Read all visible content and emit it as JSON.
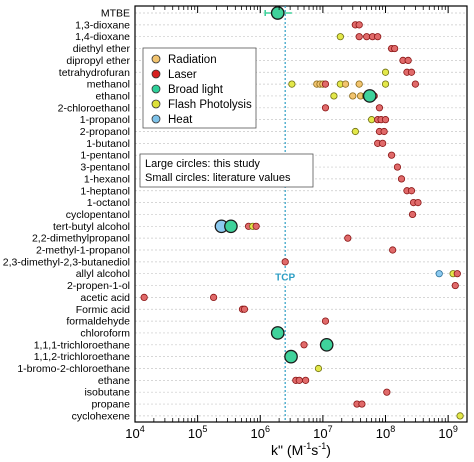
{
  "chart_data": {
    "type": "scatter",
    "xlabel_main": "k\"",
    "xlabel_unit_open": " (M",
    "xlabel_unit_exp1": "-1",
    "xlabel_unit_mid": "s",
    "xlabel_unit_exp2": "-1",
    "xlabel_unit_close": ")",
    "x_scale": "log",
    "xlim": [
      10000,
      2000000000
    ],
    "x_ticks": [
      {
        "value": 10000,
        "base": "10",
        "exp": "4"
      },
      {
        "value": 100000,
        "base": "10",
        "exp": "5"
      },
      {
        "value": 1000000,
        "base": "10",
        "exp": "6"
      },
      {
        "value": 10000000,
        "base": "10",
        "exp": "7"
      },
      {
        "value": 100000000,
        "base": "10",
        "exp": "8"
      },
      {
        "value": 1000000000,
        "base": "10",
        "exp": "9"
      }
    ],
    "categories": [
      "MTBE",
      "1,3-dioxane",
      "1,4-dioxane",
      "diethyl ether",
      "dipropyl ether",
      "tetrahydrofuran",
      "methanol",
      "ethanol",
      "2-chloroethanol",
      "1-propanol",
      "2-propanol",
      "1-butanol",
      "1-pentanol",
      "3-pentanol",
      "1-hexanol",
      "1-heptanol",
      "1-octanol",
      "cyclopentanol",
      "tert-butyl alcohol",
      "2,2-dimethylpropanol",
      "2-methyl-1-propanol",
      "2,3-dimethyl-2,3-butanediol",
      "allyl alcohol",
      "2-propen-1-ol",
      "acetic acid",
      "Formic acid",
      "formaldehyde",
      "chloroform",
      "1,1,1-trichloroethane",
      "1,1,2-trichloroethane",
      "1-bromo-2-chloroethane",
      "ethane",
      "isobutane",
      "propane",
      "cyclohexene"
    ],
    "tcp": {
      "label": "TCP",
      "value": 2500000
    },
    "legend": {
      "placement": "upper-left",
      "entries": [
        {
          "name": "Radiation",
          "color": "#f2c46f"
        },
        {
          "name": "Laser",
          "color": "#d62020"
        },
        {
          "name": "Broad light",
          "color": "#2fd09a"
        },
        {
          "name": "Flash Photolysis",
          "color": "#dde038"
        },
        {
          "name": "Heat",
          "color": "#7ec3ea"
        }
      ]
    },
    "annotation": {
      "line1": "Large circles:  this study",
      "line2": "Small circles:  literature values"
    },
    "colors": {
      "Radiation": "#f2c46f",
      "Laser": "#e06a6a",
      "Broad light": "#3fd29b",
      "Flash Photolysis": "#e3e84a",
      "Heat": "#8ccaf0"
    },
    "large_points": [
      {
        "category": "MTBE",
        "x": 1900000,
        "method": "Broad light",
        "error": [
          1200000,
          3200000
        ]
      },
      {
        "category": "ethanol",
        "x": 56000000,
        "method": "Broad light"
      },
      {
        "category": "tert-butyl alcohol",
        "x": 240000,
        "method": "Heat"
      },
      {
        "category": "tert-butyl alcohol",
        "x": 340000,
        "method": "Broad light"
      },
      {
        "category": "chloroform",
        "x": 1900000,
        "method": "Broad light"
      },
      {
        "category": "1,1,1-trichloroethane",
        "x": 11500000,
        "method": "Broad light"
      },
      {
        "category": "1,1,2-trichloroethane",
        "x": 3100000,
        "method": "Broad light"
      }
    ],
    "small_points": [
      {
        "category": "1,3-dioxane",
        "x": 33000000,
        "method": "Laser"
      },
      {
        "category": "1,3-dioxane",
        "x": 38000000,
        "method": "Laser"
      },
      {
        "category": "1,4-dioxane",
        "x": 19000000,
        "method": "Flash Photolysis"
      },
      {
        "category": "1,4-dioxane",
        "x": 38000000,
        "method": "Laser"
      },
      {
        "category": "1,4-dioxane",
        "x": 50000000,
        "method": "Laser"
      },
      {
        "category": "1,4-dioxane",
        "x": 62000000,
        "method": "Laser"
      },
      {
        "category": "1,4-dioxane",
        "x": 75000000,
        "method": "Laser"
      },
      {
        "category": "diethyl ether",
        "x": 125000000,
        "method": "Laser"
      },
      {
        "category": "diethyl ether",
        "x": 140000000,
        "method": "Laser"
      },
      {
        "category": "dipropyl ether",
        "x": 190000000,
        "method": "Laser"
      },
      {
        "category": "dipropyl ether",
        "x": 230000000,
        "method": "Laser"
      },
      {
        "category": "tetrahydrofuran",
        "x": 100000000,
        "method": "Flash Photolysis"
      },
      {
        "category": "tetrahydrofuran",
        "x": 220000000,
        "method": "Laser"
      },
      {
        "category": "tetrahydrofuran",
        "x": 260000000,
        "method": "Laser"
      },
      {
        "category": "methanol",
        "x": 3200000,
        "method": "Flash Photolysis"
      },
      {
        "category": "methanol",
        "x": 8000000,
        "method": "Radiation"
      },
      {
        "category": "methanol",
        "x": 9000000,
        "method": "Radiation"
      },
      {
        "category": "methanol",
        "x": 10000000,
        "method": "Radiation"
      },
      {
        "category": "methanol",
        "x": 11000000,
        "method": "Laser"
      },
      {
        "category": "methanol",
        "x": 19000000,
        "method": "Flash Photolysis"
      },
      {
        "category": "methanol",
        "x": 23000000,
        "method": "Radiation"
      },
      {
        "category": "methanol",
        "x": 38000000,
        "method": "Radiation"
      },
      {
        "category": "methanol",
        "x": 100000000,
        "method": "Flash Photolysis"
      },
      {
        "category": "methanol",
        "x": 300000000,
        "method": "Laser"
      },
      {
        "category": "ethanol",
        "x": 15000000,
        "method": "Flash Photolysis"
      },
      {
        "category": "ethanol",
        "x": 30000000,
        "method": "Radiation"
      },
      {
        "category": "ethanol",
        "x": 40000000,
        "method": "Radiation"
      },
      {
        "category": "ethanol",
        "x": 48000000,
        "method": "Flash Photolysis"
      },
      {
        "category": "ethanol",
        "x": 66000000,
        "method": "Laser"
      },
      {
        "category": "2-chloroethanol",
        "x": 11000000,
        "method": "Laser"
      },
      {
        "category": "2-chloroethanol",
        "x": 80000000,
        "method": "Laser"
      },
      {
        "category": "1-propanol",
        "x": 60000000,
        "method": "Flash Photolysis"
      },
      {
        "category": "1-propanol",
        "x": 75000000,
        "method": "Laser"
      },
      {
        "category": "1-propanol",
        "x": 85000000,
        "method": "Laser"
      },
      {
        "category": "1-propanol",
        "x": 100000000,
        "method": "Laser"
      },
      {
        "category": "2-propanol",
        "x": 33000000,
        "method": "Flash Photolysis"
      },
      {
        "category": "2-propanol",
        "x": 80000000,
        "method": "Laser"
      },
      {
        "category": "2-propanol",
        "x": 95000000,
        "method": "Laser"
      },
      {
        "category": "1-butanol",
        "x": 75000000,
        "method": "Laser"
      },
      {
        "category": "1-butanol",
        "x": 90000000,
        "method": "Laser"
      },
      {
        "category": "1-pentanol",
        "x": 125000000,
        "method": "Laser"
      },
      {
        "category": "3-pentanol",
        "x": 155000000,
        "method": "Laser"
      },
      {
        "category": "1-hexanol",
        "x": 180000000,
        "method": "Laser"
      },
      {
        "category": "1-heptanol",
        "x": 220000000,
        "method": "Laser"
      },
      {
        "category": "1-heptanol",
        "x": 260000000,
        "method": "Laser"
      },
      {
        "category": "1-octanol",
        "x": 280000000,
        "method": "Laser"
      },
      {
        "category": "1-octanol",
        "x": 330000000,
        "method": "Laser"
      },
      {
        "category": "cyclopentanol",
        "x": 270000000,
        "method": "Laser"
      },
      {
        "category": "tert-butyl alcohol",
        "x": 650000,
        "method": "Laser"
      },
      {
        "category": "tert-butyl alcohol",
        "x": 760000,
        "method": "Flash Photolysis"
      },
      {
        "category": "tert-butyl alcohol",
        "x": 860000,
        "method": "Laser"
      },
      {
        "category": "2,2-dimethylpropanol",
        "x": 25000000,
        "method": "Laser"
      },
      {
        "category": "2-methyl-1-propanol",
        "x": 130000000,
        "method": "Laser"
      },
      {
        "category": "2,3-dimethyl-2,3-butanediol",
        "x": 2500000,
        "method": "Laser"
      },
      {
        "category": "allyl alcohol",
        "x": 720000000,
        "method": "Heat"
      },
      {
        "category": "allyl alcohol",
        "x": 1200000000,
        "method": "Flash Photolysis"
      },
      {
        "category": "allyl alcohol",
        "x": 1400000000,
        "method": "Laser"
      },
      {
        "category": "2-propen-1-ol",
        "x": 1300000000,
        "method": "Laser"
      },
      {
        "category": "acetic acid",
        "x": 14000,
        "method": "Laser"
      },
      {
        "category": "acetic acid",
        "x": 180000,
        "method": "Laser"
      },
      {
        "category": "Formic acid",
        "x": 520000,
        "method": "Laser"
      },
      {
        "category": "Formic acid",
        "x": 560000,
        "method": "Laser"
      },
      {
        "category": "formaldehyde",
        "x": 11000000,
        "method": "Laser"
      },
      {
        "category": "1,1,1-trichloroethane",
        "x": 5000000,
        "method": "Laser"
      },
      {
        "category": "1-bromo-2-chloroethane",
        "x": 8500000,
        "method": "Flash Photolysis"
      },
      {
        "category": "ethane",
        "x": 3700000,
        "method": "Laser"
      },
      {
        "category": "ethane",
        "x": 4200000,
        "method": "Laser"
      },
      {
        "category": "ethane",
        "x": 5300000,
        "method": "Laser"
      },
      {
        "category": "isobutane",
        "x": 105000000,
        "method": "Laser"
      },
      {
        "category": "propane",
        "x": 35000000,
        "method": "Laser"
      },
      {
        "category": "propane",
        "x": 42000000,
        "method": "Laser"
      },
      {
        "category": "cyclohexene",
        "x": 1550000000,
        "method": "Flash Photolysis"
      }
    ]
  }
}
